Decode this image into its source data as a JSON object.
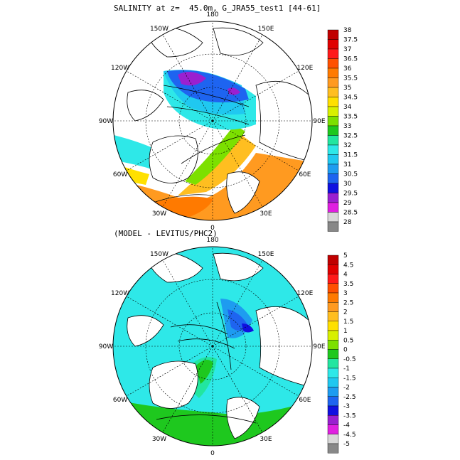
{
  "title_top": "SALINITY at z=  45.0m, G_JRA55_test1 [44-61]",
  "title_bottom": "(MODEL - LEVITUS/PHC2)",
  "lon_labels": [
    "180",
    "150E",
    "120E",
    "90E",
    "60E",
    "30E",
    "0",
    "30W",
    "60W",
    "90W",
    "120W",
    "150W"
  ],
  "colorbar_top": {
    "labels": [
      "38",
      "37.5",
      "37",
      "36.5",
      "36",
      "35.5",
      "35",
      "34.5",
      "34",
      "33.5",
      "33",
      "32.5",
      "32",
      "31.5",
      "31",
      "30.5",
      "30",
      "29.5",
      "29",
      "28.5",
      "28"
    ],
    "colors": [
      "#c00000",
      "#e00000",
      "#ff1a1a",
      "#ff5000",
      "#ff7a00",
      "#ff9a20",
      "#ffbe20",
      "#ffe000",
      "#d8f000",
      "#7ce000",
      "#1ec81e",
      "#22e6a0",
      "#2ee8e8",
      "#20c8f0",
      "#1e9cf0",
      "#1e64f0",
      "#1010e0",
      "#9a20d0",
      "#e020e0",
      "#d8d8d8",
      "#888888"
    ]
  },
  "colorbar_bottom": {
    "labels": [
      "5",
      "4.5",
      "4",
      "3.5",
      "3",
      "2.5",
      "2",
      "1.5",
      "1",
      "0.5",
      "0",
      "-0.5",
      "-1",
      "-1.5",
      "-2",
      "-2.5",
      "-3",
      "-3.5",
      "-4",
      "-4.5",
      "-5"
    ],
    "colors": [
      "#c00000",
      "#e00000",
      "#ff1a1a",
      "#ff5000",
      "#ff7a00",
      "#ff9a20",
      "#ffbe20",
      "#ffe000",
      "#d8f000",
      "#7ce000",
      "#1ec81e",
      "#22e6a0",
      "#2ee8e8",
      "#20c8f0",
      "#1e9cf0",
      "#1e64f0",
      "#1010e0",
      "#9a20d0",
      "#e020e0",
      "#d8d8d8",
      "#888888"
    ]
  }
}
